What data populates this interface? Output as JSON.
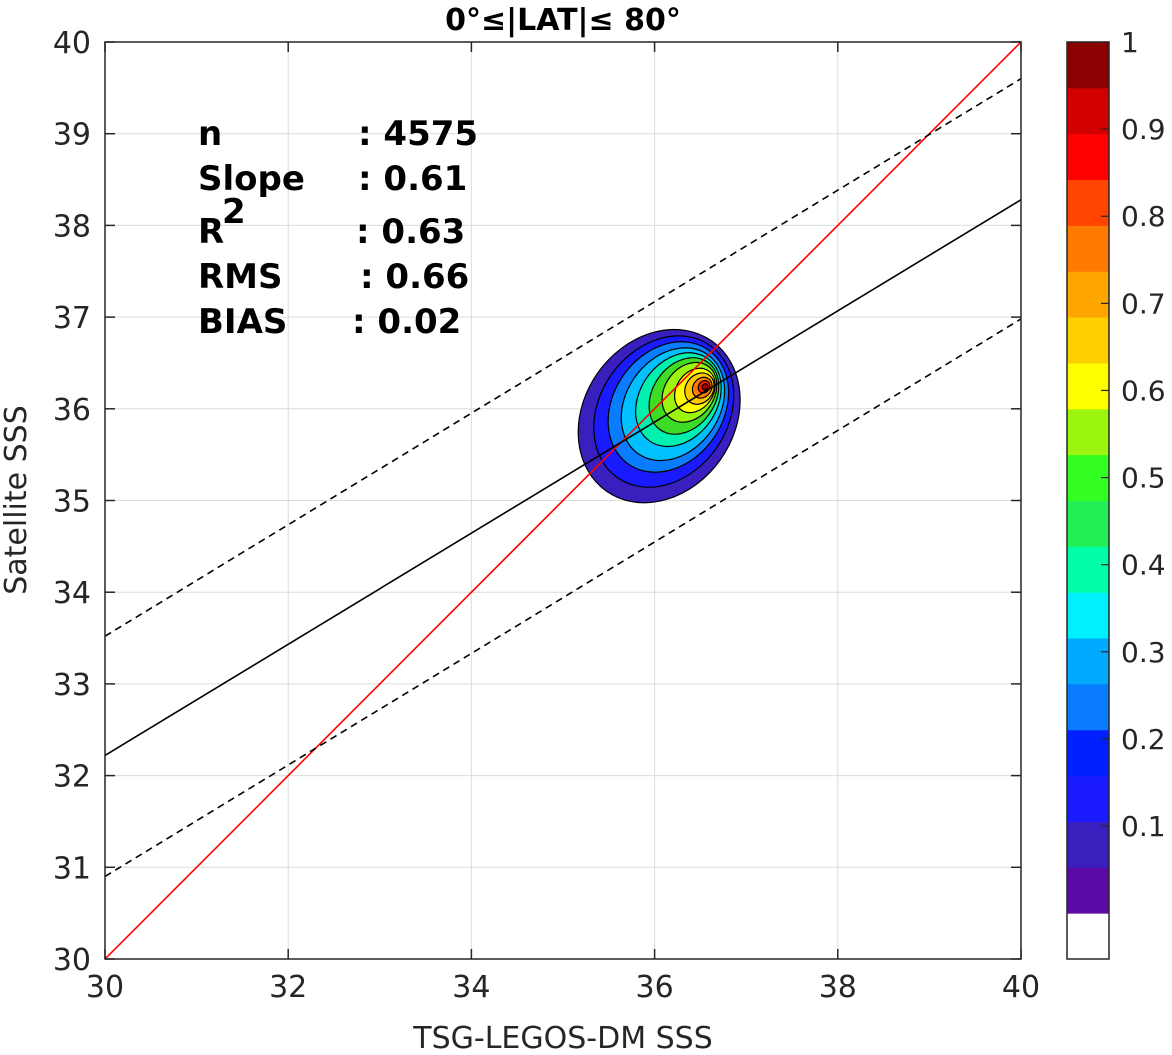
{
  "chart_data": {
    "type": "contour",
    "title": "0°≤|LAT|≤ 80°",
    "xlabel": "TSG-LEGOS-DM SSS",
    "ylabel": "Satellite SSS",
    "xlim": [
      30,
      40
    ],
    "ylim": [
      30,
      40
    ],
    "xticks": [
      "30",
      "32",
      "34",
      "36",
      "38",
      "40"
    ],
    "yticks": [
      "30",
      "31",
      "32",
      "33",
      "34",
      "35",
      "36",
      "37",
      "38",
      "39",
      "40"
    ],
    "grid": true,
    "stats": [
      {
        "label": "n",
        "value": ": 4575"
      },
      {
        "label": "Slope",
        "value": ": 0.61"
      },
      {
        "label": "R",
        "sup": "2",
        "value": ": 0.63"
      },
      {
        "label": "RMS",
        "value": ": 0.66"
      },
      {
        "label": "BIAS",
        "value": ": 0.02"
      }
    ],
    "lines": [
      {
        "role": "identity",
        "color": "#ff0000",
        "from": [
          30,
          30
        ],
        "to": [
          40,
          40
        ],
        "style": "solid"
      },
      {
        "role": "regression",
        "color": "#000000",
        "from": [
          30,
          32.22
        ],
        "to": [
          40,
          38.28
        ],
        "style": "solid"
      },
      {
        "role": "upper-bound",
        "color": "#000000",
        "from": [
          30,
          33.52
        ],
        "to": [
          40,
          39.6
        ],
        "style": "dashed"
      },
      {
        "role": "lower-bound",
        "color": "#000000",
        "from": [
          30,
          30.9
        ],
        "to": [
          40,
          36.98
        ],
        "style": "dashed"
      }
    ],
    "density_peak": {
      "x": 36.55,
      "y": 36.24
    },
    "density_contours": [
      {
        "level": 0.05,
        "color": "#3a1fbf",
        "cx": 36.05,
        "cy": 35.92,
        "rx": 0.82,
        "ry": 1.0
      },
      {
        "level": 0.15,
        "color": "#1a1aff",
        "cx": 36.1,
        "cy": 35.97,
        "rx": 0.7,
        "ry": 0.88
      },
      {
        "level": 0.2,
        "color": "#0a7cff",
        "cx": 36.15,
        "cy": 36.02,
        "rx": 0.6,
        "ry": 0.76
      },
      {
        "level": 0.3,
        "color": "#00c0ff",
        "cx": 36.2,
        "cy": 36.05,
        "rx": 0.51,
        "ry": 0.66
      },
      {
        "level": 0.4,
        "color": "#00f0b0",
        "cx": 36.26,
        "cy": 36.1,
        "rx": 0.42,
        "ry": 0.55
      },
      {
        "level": 0.5,
        "color": "#3ddc26",
        "cx": 36.32,
        "cy": 36.14,
        "rx": 0.34,
        "ry": 0.45
      },
      {
        "level": 0.55,
        "color": "#9bf50f",
        "cx": 36.38,
        "cy": 36.18,
        "rx": 0.27,
        "ry": 0.35
      },
      {
        "level": 0.65,
        "color": "#ffff00",
        "cx": 36.44,
        "cy": 36.2,
        "rx": 0.2,
        "ry": 0.26
      },
      {
        "level": 0.7,
        "color": "#ffc800",
        "cx": 36.49,
        "cy": 36.22,
        "rx": 0.15,
        "ry": 0.18
      },
      {
        "level": 0.8,
        "color": "#ff7a00",
        "cx": 36.52,
        "cy": 36.23,
        "rx": 0.1,
        "ry": 0.12
      },
      {
        "level": 0.9,
        "color": "#ff1a00",
        "cx": 36.54,
        "cy": 36.24,
        "rx": 0.06,
        "ry": 0.07
      },
      {
        "level": 1.0,
        "color": "#a00000",
        "cx": 36.55,
        "cy": 36.24,
        "rx": 0.03,
        "ry": 0.035
      }
    ],
    "colorbar": {
      "min": 0,
      "max": 1,
      "ticks": [
        "0.1",
        "0.2",
        "0.3",
        "0.4",
        "0.5",
        "0.6",
        "0.7",
        "0.8",
        "0.9",
        "1"
      ],
      "colors": [
        "#ffffff",
        "#5b0aa8",
        "#3a1fbf",
        "#1a1aff",
        "#0020ff",
        "#0a7cff",
        "#00aaff",
        "#00f0ff",
        "#00ffa8",
        "#22ee55",
        "#33ff22",
        "#9bf50f",
        "#ffff00",
        "#ffd000",
        "#ffa500",
        "#ff7a00",
        "#ff4500",
        "#ff0000",
        "#d40000",
        "#8b0000"
      ]
    }
  }
}
